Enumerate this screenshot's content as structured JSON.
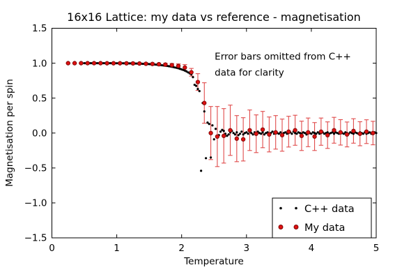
{
  "chart_data": {
    "type": "scatter",
    "title": "16x16 Lattice: my data vs reference - magnetisation",
    "xlabel": "Temperature",
    "ylabel": "Magnetisation per spin",
    "xlim": [
      0,
      5
    ],
    "ylim": [
      -1.5,
      1.5
    ],
    "grid": false,
    "x_ticks": [
      {
        "v": 0,
        "label": "0"
      },
      {
        "v": 1,
        "label": "1"
      },
      {
        "v": 2,
        "label": "2"
      },
      {
        "v": 3,
        "label": "3"
      },
      {
        "v": 4,
        "label": "4"
      },
      {
        "v": 5,
        "label": "5"
      }
    ],
    "y_ticks": [
      {
        "v": 1.5,
        "label": "1.5"
      },
      {
        "v": 1.0,
        "label": "1.0"
      },
      {
        "v": 0.5,
        "label": "0.5"
      },
      {
        "v": 0.0,
        "label": "0.0"
      },
      {
        "v": -0.5,
        "label": "−0.5"
      },
      {
        "v": -1.0,
        "label": "−1.0"
      },
      {
        "v": -1.5,
        "label": "−1.5"
      }
    ],
    "annotation": {
      "lines": [
        "Error bars omitted from C++",
        "data for clarity"
      ],
      "x": 2.51,
      "y_line1": 1.05,
      "y_line2": 0.82
    },
    "legend": {
      "position": "lower right",
      "entries": [
        {
          "label": "C++ data",
          "color": "#000000"
        },
        {
          "label": "My data",
          "color": "#dd1111"
        }
      ]
    },
    "series": [
      {
        "name": "C++ data",
        "color": "#000000",
        "marker": "point",
        "points": [
          [
            0.5,
            1.0
          ],
          [
            0.525,
            1.0
          ],
          [
            0.55,
            1.0
          ],
          [
            0.575,
            1.0
          ],
          [
            0.6,
            1.0
          ],
          [
            0.625,
            1.0
          ],
          [
            0.65,
            1.0
          ],
          [
            0.675,
            1.0
          ],
          [
            0.7,
            1.0
          ],
          [
            0.725,
            1.0
          ],
          [
            0.75,
            1.0
          ],
          [
            0.775,
            1.0
          ],
          [
            0.8,
            1.0
          ],
          [
            0.825,
            1.0
          ],
          [
            0.85,
            1.0
          ],
          [
            0.875,
            1.0
          ],
          [
            0.9,
            1.0
          ],
          [
            0.925,
            1.0
          ],
          [
            0.95,
            0.999
          ],
          [
            0.975,
            0.999
          ],
          [
            1.0,
            0.999
          ],
          [
            1.025,
            0.999
          ],
          [
            1.05,
            0.999
          ],
          [
            1.075,
            0.999
          ],
          [
            1.1,
            0.998
          ],
          [
            1.125,
            0.998
          ],
          [
            1.15,
            0.998
          ],
          [
            1.175,
            0.997
          ],
          [
            1.2,
            0.997
          ],
          [
            1.225,
            0.997
          ],
          [
            1.25,
            0.996
          ],
          [
            1.275,
            0.995
          ],
          [
            1.3,
            0.995
          ],
          [
            1.325,
            0.994
          ],
          [
            1.35,
            0.993
          ],
          [
            1.375,
            0.992
          ],
          [
            1.4,
            0.991
          ],
          [
            1.425,
            0.99
          ],
          [
            1.45,
            0.989
          ],
          [
            1.475,
            0.988
          ],
          [
            1.5,
            0.987
          ],
          [
            1.525,
            0.985
          ],
          [
            1.55,
            0.983
          ],
          [
            1.575,
            0.982
          ],
          [
            1.6,
            0.98
          ],
          [
            1.625,
            0.977
          ],
          [
            1.65,
            0.975
          ],
          [
            1.675,
            0.973
          ],
          [
            1.7,
            0.97
          ],
          [
            1.725,
            0.967
          ],
          [
            1.75,
            0.964
          ],
          [
            1.775,
            0.961
          ],
          [
            1.8,
            0.957
          ],
          [
            1.825,
            0.953
          ],
          [
            1.85,
            0.948
          ],
          [
            1.875,
            0.944
          ],
          [
            1.9,
            0.938
          ],
          [
            1.925,
            0.933
          ],
          [
            1.95,
            0.927
          ],
          [
            1.975,
            0.919
          ],
          [
            2.0,
            0.911
          ],
          [
            2.025,
            0.903
          ],
          [
            2.05,
            0.893
          ],
          [
            2.075,
            0.882
          ],
          [
            2.1,
            0.868
          ],
          [
            2.125,
            0.854
          ],
          [
            2.15,
            0.838
          ],
          [
            2.175,
            0.8
          ],
          [
            2.2,
            0.69
          ],
          [
            2.225,
            0.675
          ],
          [
            2.25,
            0.63
          ],
          [
            2.275,
            0.6
          ],
          [
            2.3,
            -0.54
          ],
          [
            2.325,
            0.43
          ],
          [
            2.35,
            0.31
          ],
          [
            2.375,
            -0.36
          ],
          [
            2.4,
            0.15
          ],
          [
            2.425,
            0.13
          ],
          [
            2.45,
            -0.35
          ],
          [
            2.475,
            0.11
          ],
          [
            2.5,
            -0.09
          ],
          [
            2.525,
            0.06
          ],
          [
            2.55,
            -0.06
          ],
          [
            2.575,
            -0.03
          ],
          [
            2.6,
            0.02
          ],
          [
            2.625,
            0.045
          ],
          [
            2.65,
            0.03
          ],
          [
            2.675,
            -0.01
          ],
          [
            2.7,
            -0.04
          ],
          [
            2.725,
            -0.02
          ],
          [
            2.75,
            0.01
          ],
          [
            2.775,
            0.03
          ],
          [
            2.8,
            0.0
          ],
          [
            2.825,
            -0.02
          ],
          [
            2.85,
            0.01
          ],
          [
            2.875,
            -0.03
          ],
          [
            2.9,
            -0.01
          ],
          [
            2.925,
            0.02
          ],
          [
            2.95,
            -0.02
          ],
          [
            2.975,
            0.0
          ],
          [
            3.0,
            0.01
          ],
          [
            3.025,
            -0.01
          ],
          [
            3.05,
            0.02
          ],
          [
            3.075,
            0.0
          ],
          [
            3.1,
            -0.02
          ],
          [
            3.125,
            0.01
          ],
          [
            3.15,
            -0.01
          ],
          [
            3.175,
            0.02
          ],
          [
            3.2,
            0.0
          ],
          [
            3.225,
            -0.01
          ],
          [
            3.25,
            0.01
          ],
          [
            3.275,
            -0.02
          ],
          [
            3.3,
            0.0
          ],
          [
            3.325,
            0.01
          ],
          [
            3.35,
            -0.01
          ],
          [
            3.375,
            0.0
          ],
          [
            3.4,
            0.02
          ],
          [
            3.425,
            -0.01
          ],
          [
            3.45,
            0.01
          ],
          [
            3.475,
            0.0
          ],
          [
            3.5,
            -0.01
          ],
          [
            3.525,
            0.01
          ],
          [
            3.55,
            -0.02
          ],
          [
            3.575,
            0.0
          ],
          [
            3.6,
            0.01
          ],
          [
            3.625,
            -0.01
          ],
          [
            3.65,
            0.0
          ],
          [
            3.675,
            0.01
          ],
          [
            3.7,
            -0.01
          ],
          [
            3.725,
            0.02
          ],
          [
            3.75,
            0.0
          ],
          [
            3.775,
            -0.01
          ],
          [
            3.8,
            0.01
          ],
          [
            3.825,
            0.0
          ],
          [
            3.85,
            -0.01
          ],
          [
            3.875,
            0.01
          ],
          [
            3.9,
            0.0
          ],
          [
            3.925,
            -0.02
          ],
          [
            3.95,
            0.01
          ],
          [
            3.975,
            0.0
          ],
          [
            4.0,
            -0.01
          ],
          [
            4.025,
            0.01
          ],
          [
            4.05,
            0.0
          ],
          [
            4.075,
            -0.01
          ],
          [
            4.1,
            0.01
          ],
          [
            4.125,
            -0.01
          ],
          [
            4.15,
            0.0
          ],
          [
            4.175,
            0.01
          ],
          [
            4.2,
            -0.01
          ],
          [
            4.225,
            0.0
          ],
          [
            4.25,
            0.01
          ],
          [
            4.275,
            -0.01
          ],
          [
            4.3,
            0.0
          ],
          [
            4.325,
            0.01
          ],
          [
            4.35,
            -0.01
          ],
          [
            4.375,
            0.01
          ],
          [
            4.4,
            0.0
          ],
          [
            4.425,
            -0.01
          ],
          [
            4.45,
            0.01
          ],
          [
            4.475,
            0.0
          ],
          [
            4.5,
            -0.01
          ],
          [
            4.525,
            0.01
          ],
          [
            4.55,
            0.0
          ],
          [
            4.575,
            -0.01
          ],
          [
            4.6,
            0.01
          ],
          [
            4.625,
            0.0
          ],
          [
            4.65,
            -0.01
          ],
          [
            4.675,
            0.01
          ],
          [
            4.7,
            0.0
          ],
          [
            4.725,
            -0.01
          ],
          [
            4.75,
            0.01
          ],
          [
            4.775,
            0.0
          ],
          [
            4.8,
            -0.01
          ],
          [
            4.825,
            0.01
          ],
          [
            4.85,
            -0.01
          ],
          [
            4.875,
            0.0
          ],
          [
            4.9,
            0.01
          ],
          [
            4.925,
            -0.01
          ],
          [
            4.95,
            0.0
          ],
          [
            4.975,
            0.01
          ],
          [
            5.0,
            0.0
          ]
        ]
      },
      {
        "name": "My data",
        "color": "#dd1111",
        "edge_color": "#7a0505",
        "errorbar_color": "#e04b4b",
        "marker": "circle",
        "points": [
          [
            0.25,
            1.0,
            0.004
          ],
          [
            0.35,
            1.0,
            0.004
          ],
          [
            0.45,
            1.0,
            0.005
          ],
          [
            0.55,
            1.0,
            0.005
          ],
          [
            0.65,
            1.0,
            0.006
          ],
          [
            0.75,
            1.0,
            0.006
          ],
          [
            0.85,
            0.999,
            0.007
          ],
          [
            0.95,
            0.999,
            0.007
          ],
          [
            1.05,
            0.999,
            0.008
          ],
          [
            1.15,
            0.998,
            0.009
          ],
          [
            1.25,
            0.997,
            0.01
          ],
          [
            1.35,
            0.995,
            0.011
          ],
          [
            1.45,
            0.992,
            0.012
          ],
          [
            1.55,
            0.989,
            0.014
          ],
          [
            1.65,
            0.985,
            0.016
          ],
          [
            1.75,
            0.98,
            0.019
          ],
          [
            1.85,
            0.972,
            0.024
          ],
          [
            1.95,
            0.96,
            0.03
          ],
          [
            2.05,
            0.938,
            0.042
          ],
          [
            2.15,
            0.87,
            0.055
          ],
          [
            2.25,
            0.73,
            0.12
          ],
          [
            2.35,
            0.43,
            0.29
          ],
          [
            2.45,
            0.0,
            0.38
          ],
          [
            2.55,
            -0.05,
            0.43
          ],
          [
            2.65,
            -0.04,
            0.39
          ],
          [
            2.75,
            0.04,
            0.36
          ],
          [
            2.85,
            -0.08,
            0.33
          ],
          [
            2.95,
            -0.09,
            0.31
          ],
          [
            3.05,
            0.04,
            0.29
          ],
          [
            3.15,
            -0.01,
            0.27
          ],
          [
            3.25,
            0.05,
            0.26
          ],
          [
            3.35,
            -0.02,
            0.25
          ],
          [
            3.45,
            0.01,
            0.24
          ],
          [
            3.55,
            -0.03,
            0.23
          ],
          [
            3.65,
            0.02,
            0.22
          ],
          [
            3.75,
            0.04,
            0.215
          ],
          [
            3.85,
            -0.04,
            0.21
          ],
          [
            3.95,
            0.01,
            0.205
          ],
          [
            4.05,
            -0.05,
            0.2
          ],
          [
            4.15,
            0.02,
            0.195
          ],
          [
            4.25,
            -0.03,
            0.19
          ],
          [
            4.35,
            0.04,
            0.185
          ],
          [
            4.45,
            0.01,
            0.182
          ],
          [
            4.55,
            -0.02,
            0.178
          ],
          [
            4.65,
            0.03,
            0.175
          ],
          [
            4.75,
            -0.01,
            0.172
          ],
          [
            4.85,
            0.02,
            0.17
          ],
          [
            4.95,
            0.0,
            0.168
          ]
        ]
      }
    ]
  },
  "colors": {
    "background": "#ffffff",
    "axis": "#000000",
    "text": "#000000"
  }
}
